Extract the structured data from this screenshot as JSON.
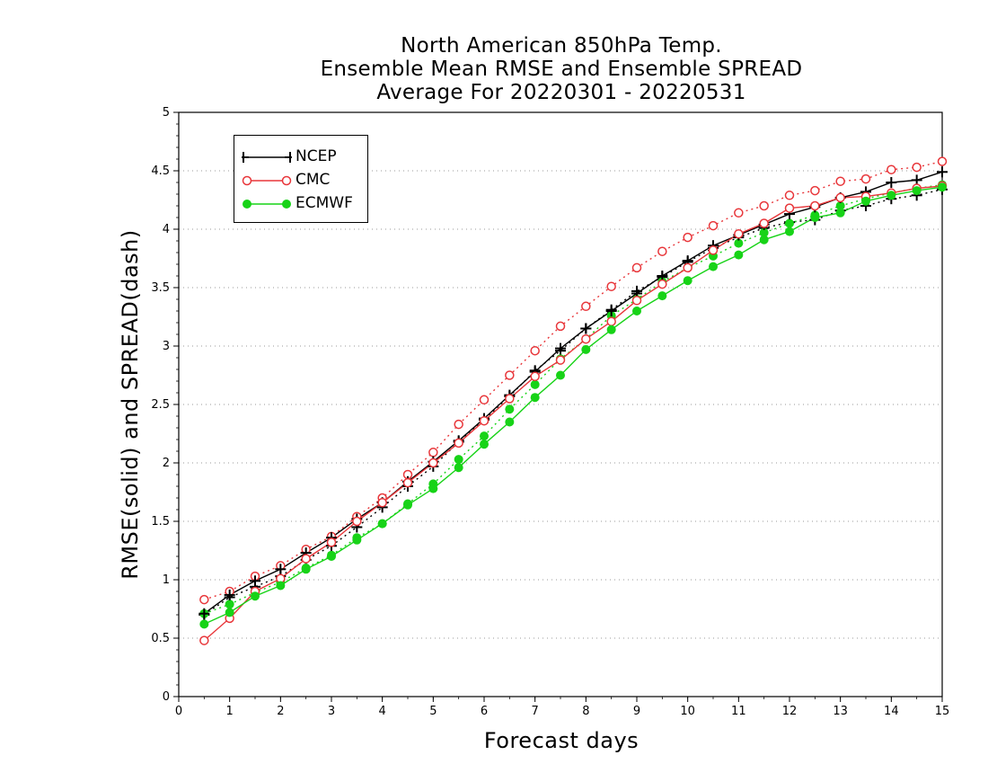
{
  "chart_data": {
    "type": "line",
    "title": "North American 850hPa Temp.",
    "subtitle": "Ensemble Mean RMSE and Ensemble SPREAD",
    "period": "Average For 20220301 - 20220531",
    "xlabel": "Forecast days",
    "ylabel": "RMSE(solid) and SPREAD(dash)",
    "xlim": [
      0,
      15
    ],
    "ylim": [
      0,
      5
    ],
    "xticks": [
      "0",
      "1",
      "2",
      "3",
      "4",
      "5",
      "6",
      "7",
      "8",
      "9",
      "10",
      "11",
      "12",
      "13",
      "14",
      "15"
    ],
    "yticks": [
      "0",
      "0.5",
      "1",
      "1.5",
      "2",
      "2.5",
      "3",
      "3.5",
      "4",
      "4.5",
      "5"
    ],
    "grid": "horizontal dotted",
    "legend_position": "top-left",
    "x": [
      0.5,
      1,
      1.5,
      2,
      2.5,
      3,
      3.5,
      4,
      4.5,
      5,
      5.5,
      6,
      6.5,
      7,
      7.5,
      8,
      8.5,
      9,
      9.5,
      10,
      10.5,
      11,
      11.5,
      12,
      12.5,
      13,
      13.5,
      14,
      14.5,
      15
    ],
    "series": [
      {
        "name": "NCEP",
        "color": "#000000",
        "marker": "plus",
        "rmse": [
          0.71,
          0.87,
          0.99,
          1.09,
          1.23,
          1.36,
          1.52,
          1.66,
          1.84,
          2.01,
          2.19,
          2.38,
          2.58,
          2.78,
          2.98,
          3.15,
          3.3,
          3.45,
          3.6,
          3.73,
          3.86,
          3.95,
          4.04,
          4.13,
          4.19,
          4.27,
          4.32,
          4.4,
          4.42,
          4.49
        ],
        "spread": [
          0.7,
          0.85,
          0.94,
          1.03,
          1.17,
          1.29,
          1.45,
          1.62,
          1.8,
          1.97,
          2.18,
          2.37,
          2.57,
          2.79,
          2.96,
          3.15,
          3.31,
          3.47,
          3.59,
          3.72,
          3.84,
          3.93,
          4.01,
          4.06,
          4.08,
          4.16,
          4.2,
          4.26,
          4.29,
          4.34
        ]
      },
      {
        "name": "CMC",
        "color": "#e8363a",
        "marker": "open-circle",
        "rmse": [
          0.48,
          0.67,
          0.9,
          1.01,
          1.18,
          1.32,
          1.5,
          1.66,
          1.83,
          2.0,
          2.17,
          2.36,
          2.55,
          2.74,
          2.88,
          3.06,
          3.21,
          3.39,
          3.53,
          3.67,
          3.82,
          3.96,
          4.05,
          4.18,
          4.2,
          4.27,
          4.28,
          4.31,
          4.35,
          4.37
        ],
        "spread": [
          0.83,
          0.9,
          1.03,
          1.12,
          1.26,
          1.37,
          1.54,
          1.7,
          1.9,
          2.09,
          2.33,
          2.54,
          2.75,
          2.96,
          3.17,
          3.34,
          3.51,
          3.67,
          3.81,
          3.93,
          4.03,
          4.14,
          4.2,
          4.29,
          4.33,
          4.41,
          4.43,
          4.51,
          4.53,
          4.58
        ]
      },
      {
        "name": "ECMWF",
        "color": "#17d317",
        "marker": "filled-circle",
        "rmse": [
          0.62,
          0.72,
          0.86,
          0.95,
          1.09,
          1.2,
          1.34,
          1.48,
          1.64,
          1.78,
          1.96,
          2.16,
          2.35,
          2.56,
          2.75,
          2.97,
          3.14,
          3.3,
          3.43,
          3.56,
          3.68,
          3.78,
          3.91,
          3.98,
          4.1,
          4.14,
          4.24,
          4.29,
          4.33,
          4.36
        ],
        "spread": [
          0.71,
          0.79,
          0.89,
          0.98,
          1.1,
          1.21,
          1.36,
          1.48,
          1.65,
          1.82,
          2.03,
          2.23,
          2.46,
          2.67,
          2.89,
          3.06,
          3.26,
          3.4,
          3.55,
          3.67,
          3.77,
          3.88,
          3.97,
          4.05,
          4.12,
          4.2,
          4.26,
          4.31,
          4.35,
          4.38
        ]
      }
    ]
  }
}
